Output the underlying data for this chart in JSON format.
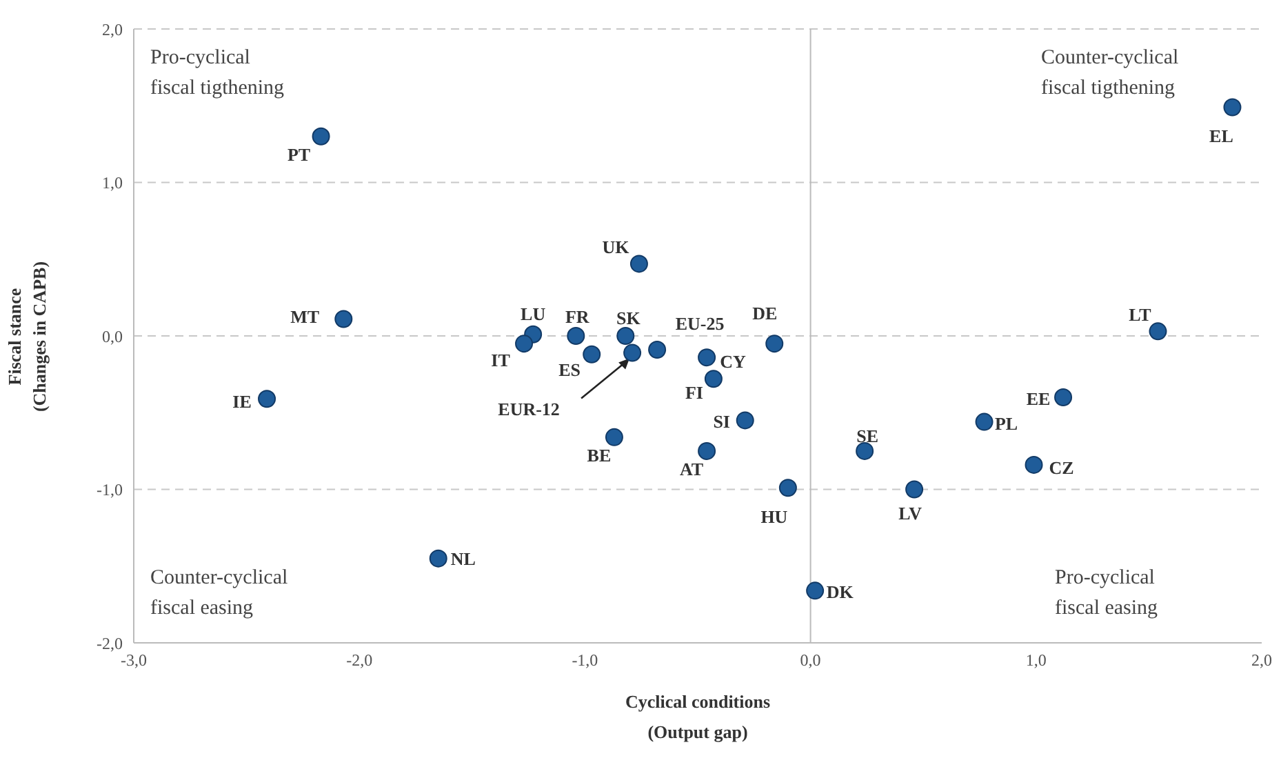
{
  "chart_data": {
    "type": "scatter",
    "xlabel": "Cyclical conditions\n(Output gap)",
    "ylabel": "Fiscal stance\n(Changes in CAPB)",
    "x": [
      -2.17,
      1.87,
      -0.76,
      -2.07,
      -1.23,
      -1.27,
      -1.04,
      -0.97,
      -0.82,
      -0.79,
      -0.68,
      -0.16,
      -0.46,
      -0.43,
      -0.29,
      -0.46,
      -0.87,
      -2.41,
      -1.65,
      -0.1,
      0.02,
      0.24,
      0.46,
      0.77,
      1.12,
      0.99,
      1.54
    ],
    "series": [
      {
        "color": "#1f5c99",
        "values": [
          1.3,
          1.49,
          0.47,
          0.11,
          0.01,
          -0.05,
          0.0,
          -0.12,
          0.0,
          -0.11,
          -0.09,
          -0.05,
          -0.14,
          -0.28,
          -0.55,
          -0.75,
          -0.66,
          -0.41,
          -1.45,
          -0.99,
          -1.66,
          -0.75,
          -1.0,
          -0.56,
          -0.4,
          -0.84,
          0.03
        ]
      }
    ],
    "marker": "circle",
    "grid": "y",
    "line_style": "dashed",
    "xlim": [
      -3,
      2
    ],
    "xticks": [
      {
        "value": -3,
        "label": "-3,0"
      },
      {
        "value": -2,
        "label": "-2,0"
      },
      {
        "value": -1,
        "label": "-1,0"
      },
      {
        "value": 0,
        "label": "0,0"
      },
      {
        "value": 1,
        "label": "1,0"
      },
      {
        "value": 2,
        "label": "2,0"
      }
    ],
    "ylim": [
      -2,
      2
    ],
    "yticks": [
      {
        "value": -2,
        "label": "-2,0"
      },
      {
        "value": -1,
        "label": "-1,0"
      },
      {
        "value": 0,
        "label": "0,0"
      },
      {
        "value": 1,
        "label": "1,0"
      },
      {
        "value": 2,
        "label": "2,0"
      }
    ],
    "ref_lines": [
      {
        "axis": "x",
        "value": 0,
        "line_style": "solid"
      }
    ],
    "annotations": [
      "Pro-cyclical\nfiscal tigthening",
      "Counter-cyclical\nfiscal tigthening",
      "Counter-cyclical\nfiscal easing",
      "Pro-cyclical\nfiscal easing",
      {
        "text": "PT",
        "x": -2.17,
        "y": 1.3
      },
      {
        "text": "EL",
        "x": 1.87,
        "y": 1.49
      },
      {
        "text": "UK",
        "x": -0.76,
        "y": 0.47
      },
      {
        "text": "MT",
        "x": -2.07,
        "y": 0.11
      },
      {
        "text": "LU",
        "x": -1.23,
        "y": 0.01
      },
      {
        "text": "IT",
        "x": -1.27,
        "y": -0.05
      },
      {
        "text": "FR",
        "x": -1.04,
        "y": 0.0
      },
      {
        "text": "ES",
        "x": -0.97,
        "y": -0.12
      },
      {
        "text": "SK",
        "x": -0.82,
        "y": 0.0
      },
      {
        "text": "EUR-12",
        "x": -0.79,
        "y": -0.11
      },
      {
        "text": "EU-25",
        "x": -0.68,
        "y": -0.09
      },
      {
        "text": "DE",
        "x": -0.16,
        "y": -0.05
      },
      {
        "text": "CY",
        "x": -0.46,
        "y": -0.14
      },
      {
        "text": "FI",
        "x": -0.43,
        "y": -0.28
      },
      {
        "text": "SI",
        "x": -0.29,
        "y": -0.55
      },
      {
        "text": "AT",
        "x": -0.46,
        "y": -0.75
      },
      {
        "text": "BE",
        "x": -0.87,
        "y": -0.66
      },
      {
        "text": "IE",
        "x": -2.41,
        "y": -0.41
      },
      {
        "text": "NL",
        "x": -1.65,
        "y": -1.45
      },
      {
        "text": "HU",
        "x": -0.1,
        "y": -0.99
      },
      {
        "text": "DK",
        "x": 0.02,
        "y": -1.66
      },
      {
        "text": "SE",
        "x": 0.24,
        "y": -0.75
      },
      {
        "text": "LV",
        "x": 0.46,
        "y": -1.0
      },
      {
        "text": "PL",
        "x": 0.77,
        "y": -0.56
      },
      {
        "text": "EE",
        "x": 1.12,
        "y": -0.4
      },
      {
        "text": "CZ",
        "x": 0.99,
        "y": -0.84
      },
      {
        "text": "LT",
        "x": 1.54,
        "y": 0.03
      }
    ]
  }
}
